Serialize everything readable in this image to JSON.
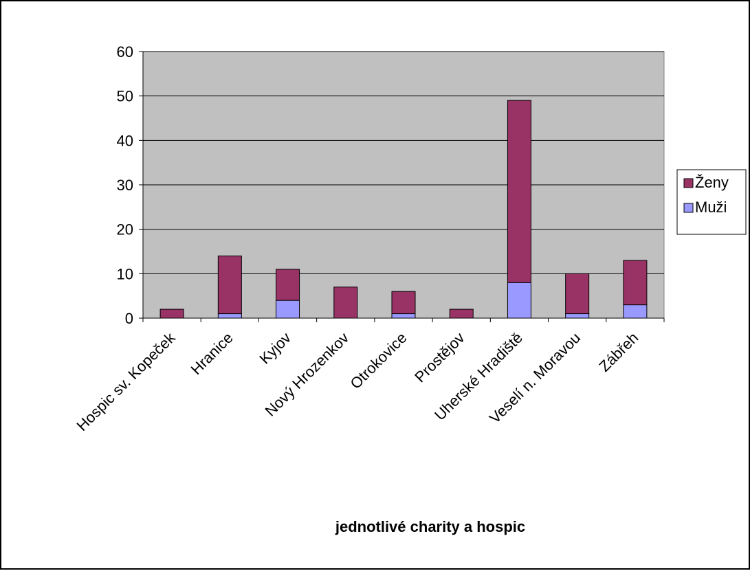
{
  "chart_data": {
    "type": "bar",
    "stacked": true,
    "title": "",
    "xlabel": "jednotlivé charity a hospic",
    "ylabel": "",
    "ylim": [
      0,
      60
    ],
    "yticks": [
      0,
      10,
      20,
      30,
      40,
      50,
      60
    ],
    "grid": true,
    "legend_position": "right",
    "categories": [
      "Hospic sv. Kopeček",
      "Hranice",
      "Kyjov",
      "Nový Hrozenkov",
      "Otrokovice",
      "Prostějov",
      "Uherské Hradiště",
      "Veselí n. Moravou",
      "Zábřeh"
    ],
    "series": [
      {
        "name": "Muži",
        "color": "#9999ff",
        "values": [
          0,
          1,
          4,
          0,
          1,
          0,
          8,
          1,
          3
        ]
      },
      {
        "name": "Ženy",
        "color": "#993366",
        "values": [
          2,
          13,
          7,
          7,
          5,
          2,
          41,
          9,
          10
        ]
      }
    ],
    "legend_order": [
      "Ženy",
      "Muži"
    ],
    "plot_background": "#c0c0c0"
  }
}
